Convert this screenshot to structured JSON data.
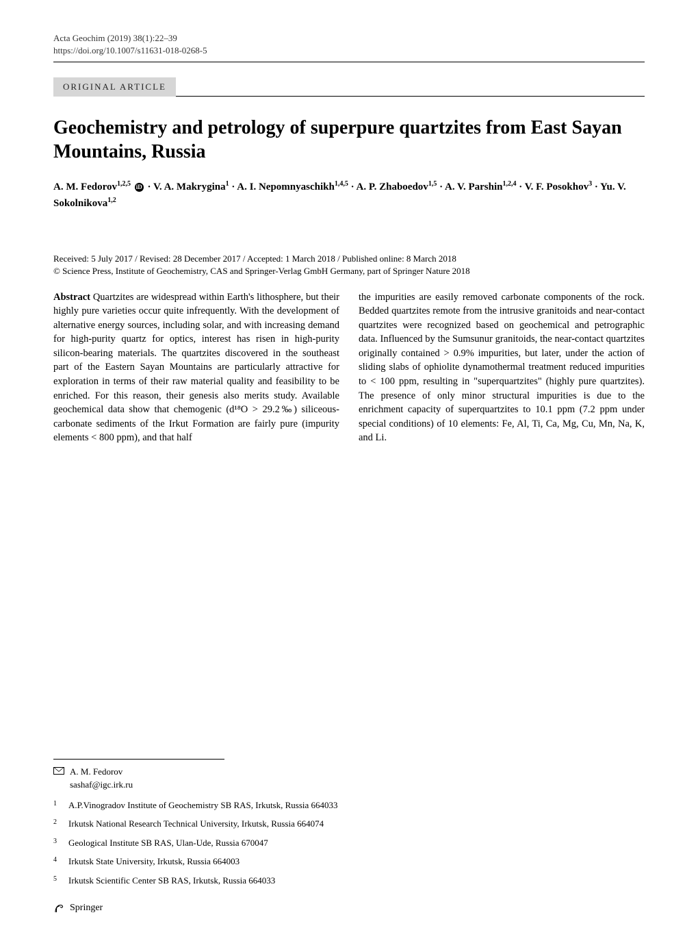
{
  "header": {
    "journal_ref": "Acta Geochim (2019) 38(1):22–39",
    "doi": "https://doi.org/10.1007/s11631-018-0268-5"
  },
  "article_type": "ORIGINAL ARTICLE",
  "title": "Geochemistry and petrology of superpure quartzites from East Sayan Mountains, Russia",
  "authors_html": "A. M. Fedorov<sup>1,2,5</sup> <span class='orcid'>iD</span> · V. A. Makrygina<sup>1</sup> · A. I. Nepomnyaschikh<sup>1,4,5</sup> · A. P. Zhaboedov<sup>1,5</sup> · A. V. Parshin<sup>1,2,4</sup> · V. F. Posokhov<sup>3</sup> · Yu. V. Sokolnikova<sup>1,2</sup>",
  "dates": "Received: 5 July 2017 / Revised: 28 December 2017 / Accepted: 1 March 2018 / Published online: 8 March 2018",
  "copyright": "© Science Press, Institute of Geochemistry, CAS and Springer-Verlag GmbH Germany, part of Springer Nature 2018",
  "abstract": {
    "label": "Abstract",
    "col1": "Quartzites are widespread within Earth's lithosphere, but their highly pure varieties occur quite infrequently. With the development of alternative energy sources, including solar, and with increasing demand for high-purity quartz for optics, interest has risen in high-purity silicon-bearing materials. The quartzites discovered in the southeast part of the Eastern Sayan Mountains are particularly attractive for exploration in terms of their raw material quality and feasibility to be enriched. For this reason, their genesis also merits study. Available geochemical data show that chemogenic (d¹⁸O > 29.2‰) siliceous-carbonate sediments of the Irkut Formation are fairly pure (impurity elements < 800 ppm), and that half",
    "col2": "the impurities are easily removed carbonate components of the rock. Bedded quartzites remote from the intrusive granitoids and near-contact quartzites were recognized based on geochemical and petrographic data. Influenced by the Sumsunur granitoids, the near-contact quartzites originally contained > 0.9% impurities, but later, under the action of sliding slabs of ophiolite dynamothermal treatment reduced impurities to < 100 ppm, resulting in \"superquartzites\" (highly pure quartzites). The presence of only minor structural impurities is due to the enrichment capacity of superquartzites to 10.1 ppm (7.2 ppm under special conditions) of 10 elements: Fe, Al, Ti, Ca, Mg, Cu, Mn, Na, K, and Li."
  },
  "corresponding": {
    "name": "A. M. Fedorov",
    "email": "sashaf@igc.irk.ru"
  },
  "affiliations": [
    {
      "n": "1",
      "text": "A.P.Vinogradov Institute of Geochemistry SB RAS, Irkutsk, Russia 664033"
    },
    {
      "n": "2",
      "text": "Irkutsk National Research Technical University, Irkutsk, Russia 664074"
    },
    {
      "n": "3",
      "text": "Geological Institute SB RAS, Ulan-Ude, Russia 670047"
    },
    {
      "n": "4",
      "text": "Irkutsk State University, Irkutsk, Russia 664003"
    },
    {
      "n": "5",
      "text": "Irkutsk Scientific Center SB RAS, Irkutsk, Russia 664033"
    }
  ],
  "publisher": "Springer",
  "colors": {
    "article_type_bg": "#d6d6d6",
    "text": "#000000",
    "bg": "#ffffff"
  }
}
